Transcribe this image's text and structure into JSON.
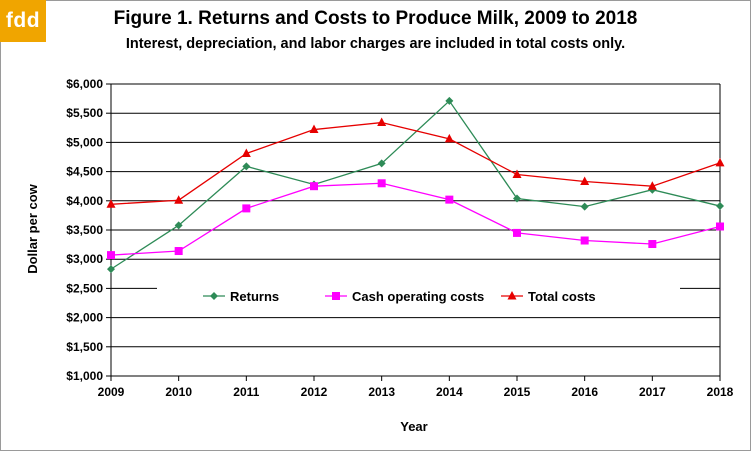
{
  "logo": {
    "text": "fdd",
    "color": "#f0a500"
  },
  "chart_data": {
    "type": "line",
    "title": "Figure 1.  Returns and Costs to Produce Milk, 2009 to 2018",
    "subtitle": "Interest, depreciation, and labor charges are included in total costs only.",
    "xlabel": "Year",
    "ylabel": "Dollar per cow",
    "categories": [
      "2009",
      "2010",
      "2011",
      "2012",
      "2013",
      "2014",
      "2015",
      "2016",
      "2017",
      "2018"
    ],
    "ylim": [
      1000,
      6000
    ],
    "yticks": [
      "$1,000",
      "$1,500",
      "$2,000",
      "$2,500",
      "$3,000",
      "$3,500",
      "$4,000",
      "$4,500",
      "$5,000",
      "$5,500",
      "$6,000"
    ],
    "ytick_values": [
      1000,
      1500,
      2000,
      2500,
      3000,
      3500,
      4000,
      4500,
      5000,
      5500,
      6000
    ],
    "grid": true,
    "legend_position": "center",
    "series": [
      {
        "name": "Returns",
        "color": "#2e8b57",
        "marker": "diamond",
        "values": [
          2830,
          3580,
          4590,
          4280,
          4640,
          5710,
          4040,
          3900,
          4190,
          3910
        ]
      },
      {
        "name": "Cash operating costs",
        "color": "#ff00ff",
        "marker": "square",
        "values": [
          3070,
          3140,
          3870,
          4250,
          4300,
          4020,
          3450,
          3320,
          3260,
          3560
        ]
      },
      {
        "name": "Total costs",
        "color": "#e60000",
        "marker": "triangle",
        "values": [
          3940,
          4010,
          4810,
          5220,
          5340,
          5060,
          4450,
          4330,
          4250,
          4650
        ]
      }
    ]
  }
}
